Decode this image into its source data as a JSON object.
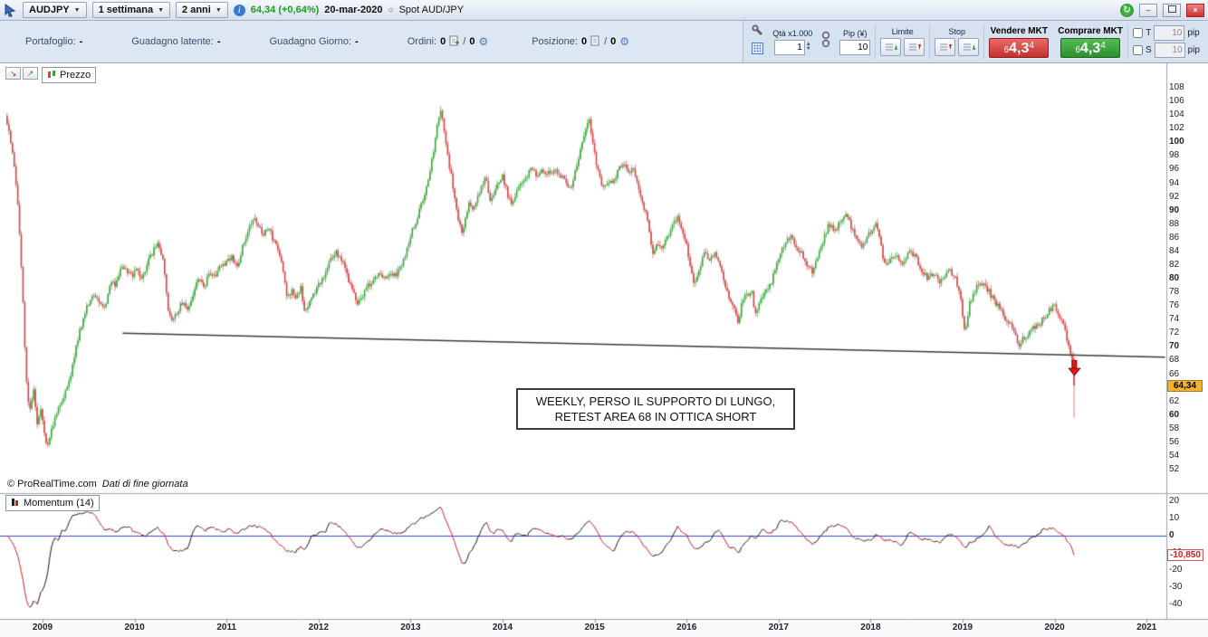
{
  "title_bar": {
    "symbol": "AUDJPY",
    "timeframe": "1 settimana",
    "range": "2 anni",
    "price_change": "64,34 (+0,64%)",
    "date": "20-mar-2020",
    "spot_label": "Spot AUD/JPY",
    "minimize": "–",
    "close": "×"
  },
  "toolbar": {
    "portfolio_label": "Portafoglio:",
    "portfolio_value": "-",
    "latent_gain_label": "Guadagno latente:",
    "latent_gain_value": "-",
    "day_gain_label": "Guadagno Giorno:",
    "day_gain_value": "-",
    "orders_label": "Ordini:",
    "orders_value": "0",
    "orders_value2": "0",
    "position_label": "Posizione:",
    "position_value": "0",
    "position_value2": "0",
    "qty_label": "Qtà x1.000",
    "qty_value": "1",
    "pip_label": "Pip (¥)",
    "pip_value": "10",
    "limit_label": "Limite",
    "stop_label": "Stop",
    "sell_label": "Vendere MKT",
    "buy_label": "Comprare MKT",
    "sell_price": {
      "prefix": "6",
      "main": "4,3",
      "sup": "4"
    },
    "buy_price": {
      "prefix": "6",
      "main": "4,3",
      "sup": "4"
    },
    "t_label": "T",
    "t_value": "10",
    "s_label": "S",
    "s_value": "10",
    "pip_unit": "pip"
  },
  "chart": {
    "price_legend": "Prezzo",
    "momentum_legend": "Momentum (14)",
    "copyright": "© ProRealTime.com",
    "data_note": "Dati di fine giornata",
    "annotation_line1": "WEEKLY, PERSO IL SUPPORTO DI LUNGO,",
    "annotation_line2": "RETEST AREA 68 IN OTTICA SHORT",
    "last_price_label": "64,34",
    "momentum_value_label": "-10,850"
  },
  "chart_data": {
    "type": "candlestick",
    "indicator": "momentum",
    "momentum_period": 14,
    "momentum_last": -10.85,
    "x_start": 2008.615,
    "x_end": 2020.215,
    "price_axis": {
      "min": 52,
      "max": 108,
      "step": 2
    },
    "momentum_axis": [
      20,
      10,
      0,
      -10,
      -20,
      -30,
      -40
    ],
    "years": [
      2009,
      2010,
      2011,
      2012,
      2013,
      2014,
      2015,
      2016,
      2017,
      2018,
      2019,
      2020,
      2021
    ],
    "trendline": {
      "from": [
        2009.87,
        72.0
      ],
      "to": [
        2021.2,
        68.5
      ]
    },
    "arrow": {
      "year": 2020.21,
      "price": 68.1
    },
    "last_candle": {
      "open": 68.3,
      "high": 69.2,
      "low": 59.6,
      "close": 64.34
    },
    "colors": {
      "up": "#3fa53f",
      "down": "#d14747",
      "trend": "#3a3a3a",
      "momentum_up": "#1a1a1a",
      "momentum_down": "#cc2222",
      "zero_line": "#3b46c4"
    },
    "price_anchors": [
      [
        2008.62,
        103
      ],
      [
        2008.66,
        99
      ],
      [
        2008.7,
        96
      ],
      [
        2008.74,
        89
      ],
      [
        2008.78,
        79
      ],
      [
        2008.82,
        66
      ],
      [
        2008.86,
        60
      ],
      [
        2008.9,
        64
      ],
      [
        2008.94,
        59
      ],
      [
        2008.98,
        61
      ],
      [
        2009.02,
        57
      ],
      [
        2009.06,
        55.5
      ],
      [
        2009.1,
        58
      ],
      [
        2009.15,
        60
      ],
      [
        2009.22,
        62.5
      ],
      [
        2009.3,
        65.5
      ],
      [
        2009.38,
        71
      ],
      [
        2009.44,
        74
      ],
      [
        2009.5,
        76.5
      ],
      [
        2009.56,
        78
      ],
      [
        2009.62,
        76.5
      ],
      [
        2009.68,
        76
      ],
      [
        2009.74,
        79.5
      ],
      [
        2009.8,
        79
      ],
      [
        2009.86,
        82
      ],
      [
        2009.92,
        81
      ],
      [
        2009.97,
        80.5
      ],
      [
        2010.03,
        81.5
      ],
      [
        2010.08,
        79.5
      ],
      [
        2010.14,
        82.5
      ],
      [
        2010.2,
        84
      ],
      [
        2010.26,
        85
      ],
      [
        2010.31,
        83
      ],
      [
        2010.36,
        75.5
      ],
      [
        2010.41,
        73.5
      ],
      [
        2010.46,
        75
      ],
      [
        2010.52,
        76.5
      ],
      [
        2010.58,
        75.5
      ],
      [
        2010.64,
        78
      ],
      [
        2010.7,
        80
      ],
      [
        2010.76,
        79
      ],
      [
        2010.82,
        81
      ],
      [
        2010.88,
        80.5
      ],
      [
        2010.94,
        82
      ],
      [
        2011.0,
        82.5
      ],
      [
        2011.06,
        83
      ],
      [
        2011.12,
        82
      ],
      [
        2011.18,
        85
      ],
      [
        2011.24,
        87.5
      ],
      [
        2011.3,
        89
      ],
      [
        2011.35,
        88
      ],
      [
        2011.4,
        86.5
      ],
      [
        2011.45,
        87.5
      ],
      [
        2011.5,
        86
      ],
      [
        2011.56,
        84
      ],
      [
        2011.62,
        81
      ],
      [
        2011.66,
        77
      ],
      [
        2011.71,
        78.5
      ],
      [
        2011.76,
        77
      ],
      [
        2011.81,
        79
      ],
      [
        2011.85,
        74.5
      ],
      [
        2011.9,
        76.5
      ],
      [
        2011.95,
        77.5
      ],
      [
        2012.0,
        79
      ],
      [
        2012.06,
        80.5
      ],
      [
        2012.12,
        82.5
      ],
      [
        2012.18,
        84
      ],
      [
        2012.24,
        83
      ],
      [
        2012.3,
        81
      ],
      [
        2012.36,
        78.5
      ],
      [
        2012.42,
        76.5
      ],
      [
        2012.48,
        77.5
      ],
      [
        2012.54,
        79
      ],
      [
        2012.6,
        80
      ],
      [
        2012.66,
        81
      ],
      [
        2012.72,
        80
      ],
      [
        2012.78,
        81
      ],
      [
        2012.84,
        80.5
      ],
      [
        2012.9,
        82
      ],
      [
        2012.95,
        84
      ],
      [
        2013.0,
        86.5
      ],
      [
        2013.06,
        88.5
      ],
      [
        2013.12,
        91
      ],
      [
        2013.18,
        94
      ],
      [
        2013.24,
        98
      ],
      [
        2013.29,
        102.5
      ],
      [
        2013.33,
        105
      ],
      [
        2013.37,
        101
      ],
      [
        2013.42,
        96.5
      ],
      [
        2013.47,
        93
      ],
      [
        2013.52,
        88.5
      ],
      [
        2013.56,
        86.5
      ],
      [
        2013.6,
        89.5
      ],
      [
        2013.64,
        91
      ],
      [
        2013.68,
        89.5
      ],
      [
        2013.72,
        92
      ],
      [
        2013.77,
        93.5
      ],
      [
        2013.82,
        95
      ],
      [
        2013.86,
        91.5
      ],
      [
        2013.9,
        92.5
      ],
      [
        2013.95,
        94
      ],
      [
        2014.0,
        95
      ],
      [
        2014.05,
        92.5
      ],
      [
        2014.1,
        91
      ],
      [
        2014.15,
        92.5
      ],
      [
        2014.2,
        94
      ],
      [
        2014.26,
        95
      ],
      [
        2014.32,
        96
      ],
      [
        2014.38,
        95
      ],
      [
        2014.44,
        96
      ],
      [
        2014.5,
        95.5
      ],
      [
        2014.56,
        96
      ],
      [
        2014.62,
        95
      ],
      [
        2014.68,
        94.5
      ],
      [
        2014.74,
        93
      ],
      [
        2014.8,
        96
      ],
      [
        2014.86,
        99.5
      ],
      [
        2014.91,
        102.5
      ],
      [
        2014.94,
        104
      ],
      [
        2014.97,
        100.5
      ],
      [
        2015.02,
        97
      ],
      [
        2015.06,
        94.5
      ],
      [
        2015.1,
        93
      ],
      [
        2015.15,
        94.5
      ],
      [
        2015.2,
        94
      ],
      [
        2015.26,
        96
      ],
      [
        2015.31,
        97
      ],
      [
        2015.36,
        95.5
      ],
      [
        2015.42,
        96
      ],
      [
        2015.47,
        94
      ],
      [
        2015.52,
        91
      ],
      [
        2015.58,
        88.5
      ],
      [
        2015.63,
        83.5
      ],
      [
        2015.68,
        85.5
      ],
      [
        2015.73,
        84.5
      ],
      [
        2015.78,
        86
      ],
      [
        2015.84,
        87.5
      ],
      [
        2015.9,
        89
      ],
      [
        2015.95,
        87
      ],
      [
        2016.0,
        85
      ],
      [
        2016.05,
        81
      ],
      [
        2016.09,
        79
      ],
      [
        2016.14,
        81.5
      ],
      [
        2016.19,
        83.5
      ],
      [
        2016.25,
        83
      ],
      [
        2016.31,
        84
      ],
      [
        2016.37,
        82
      ],
      [
        2016.42,
        79
      ],
      [
        2016.47,
        77
      ],
      [
        2016.52,
        75.5
      ],
      [
        2016.56,
        73.5
      ],
      [
        2016.61,
        77
      ],
      [
        2016.66,
        77.5
      ],
      [
        2016.71,
        78
      ],
      [
        2016.75,
        74.5
      ],
      [
        2016.8,
        76.5
      ],
      [
        2016.86,
        78
      ],
      [
        2016.92,
        79.5
      ],
      [
        2016.97,
        81.5
      ],
      [
        2017.03,
        84
      ],
      [
        2017.08,
        85.5
      ],
      [
        2017.14,
        86
      ],
      [
        2017.2,
        84.5
      ],
      [
        2017.26,
        83.5
      ],
      [
        2017.32,
        82
      ],
      [
        2017.37,
        81
      ],
      [
        2017.43,
        83.5
      ],
      [
        2017.49,
        86
      ],
      [
        2017.55,
        88
      ],
      [
        2017.61,
        87
      ],
      [
        2017.67,
        88.5
      ],
      [
        2017.72,
        89.5
      ],
      [
        2017.78,
        88
      ],
      [
        2017.84,
        86
      ],
      [
        2017.9,
        84.5
      ],
      [
        2017.96,
        86
      ],
      [
        2018.02,
        87.5
      ],
      [
        2018.06,
        88.5
      ],
      [
        2018.11,
        85
      ],
      [
        2018.16,
        81.5
      ],
      [
        2018.21,
        82.5
      ],
      [
        2018.27,
        83.5
      ],
      [
        2018.33,
        82
      ],
      [
        2018.39,
        83.5
      ],
      [
        2018.45,
        84
      ],
      [
        2018.51,
        82.5
      ],
      [
        2018.57,
        81
      ],
      [
        2018.63,
        80
      ],
      [
        2018.69,
        81
      ],
      [
        2018.75,
        79.5
      ],
      [
        2018.81,
        80.5
      ],
      [
        2018.87,
        81
      ],
      [
        2018.92,
        80
      ],
      [
        2018.97,
        78
      ],
      [
        2019.01,
        73.5
      ],
      [
        2019.03,
        72
      ],
      [
        2019.07,
        76
      ],
      [
        2019.12,
        78
      ],
      [
        2019.17,
        79
      ],
      [
        2019.23,
        79.5
      ],
      [
        2019.29,
        78
      ],
      [
        2019.35,
        76.5
      ],
      [
        2019.41,
        75.5
      ],
      [
        2019.47,
        74
      ],
      [
        2019.53,
        73
      ],
      [
        2019.59,
        71
      ],
      [
        2019.62,
        70.2
      ],
      [
        2019.67,
        71.5
      ],
      [
        2019.72,
        72
      ],
      [
        2019.78,
        73
      ],
      [
        2019.84,
        73.5
      ],
      [
        2019.89,
        74.5
      ],
      [
        2019.94,
        75.3
      ],
      [
        2020.0,
        76.2
      ],
      [
        2020.05,
        74.5
      ],
      [
        2020.09,
        73.5
      ],
      [
        2020.13,
        71.5
      ],
      [
        2020.16,
        69.8
      ],
      [
        2020.19,
        67
      ],
      [
        2020.215,
        64.34
      ]
    ]
  }
}
